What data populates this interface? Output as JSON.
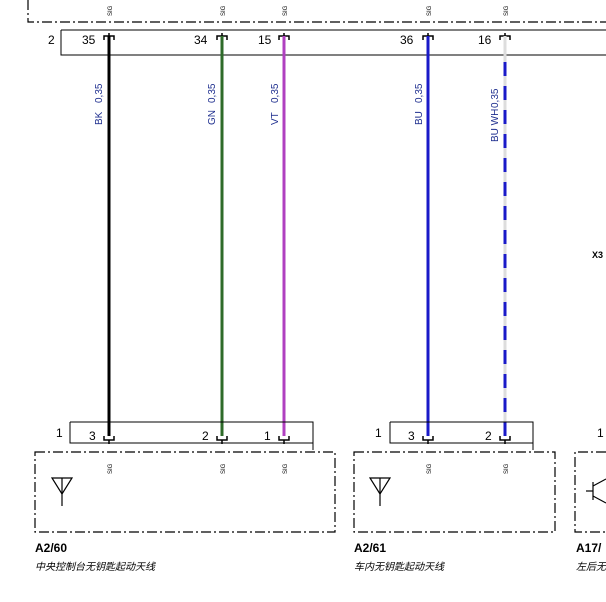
{
  "colors": {
    "BK": "#000000",
    "GN": "#2e6b2a",
    "VT": "#b040c0",
    "BU": "#1a1ac8",
    "WH": "#ffffff",
    "frame": "#000000",
    "wire_label": "#1f2f8f"
  },
  "sig_label": "SIG",
  "top_connector": {
    "group_pin": "2",
    "pins": [
      {
        "id": "p35",
        "number": "35"
      },
      {
        "id": "p34",
        "number": "34"
      },
      {
        "id": "p15",
        "number": "15"
      },
      {
        "id": "p36",
        "number": "36"
      },
      {
        "id": "p16",
        "number": "16"
      }
    ]
  },
  "wires": [
    {
      "id": "w-bk",
      "code": "BK",
      "size": "0,35",
      "colors": [
        "BK"
      ]
    },
    {
      "id": "w-gn",
      "code": "GN",
      "size": "0,35",
      "colors": [
        "GN"
      ]
    },
    {
      "id": "w-vt",
      "code": "VT",
      "size": "0,35",
      "colors": [
        "VT"
      ]
    },
    {
      "id": "w-bu",
      "code": "BU",
      "size": "0,35",
      "colors": [
        "BU"
      ]
    },
    {
      "id": "w-buwh",
      "code": "BU WH",
      "size": "0,35",
      "colors": [
        "BU",
        "WH"
      ]
    }
  ],
  "components": [
    {
      "id": "A2/60",
      "description": "中央控制台无钥匙起动天线",
      "group_pin": "1",
      "pins": [
        "3",
        "2",
        "1"
      ]
    },
    {
      "id": "A2/61",
      "description": "车内无钥匙起动天线",
      "group_pin": "1",
      "pins": [
        "3",
        "2"
      ]
    },
    {
      "id": "A17/",
      "description": "左后无",
      "group_pin": "1",
      "pins": []
    }
  ],
  "edge_label": "X3"
}
